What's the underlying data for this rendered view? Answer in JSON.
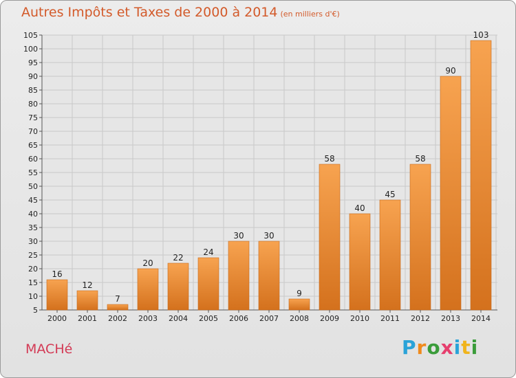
{
  "colors": {
    "title": "#d35a2a",
    "commune": "#d33a55",
    "bar_light": "#f7a350",
    "bar_dark": "#d4711d",
    "grid": "#c8c8c8",
    "axis_text": "#222222"
  },
  "header": {
    "title": "Autres Impôts et Taxes de 2000 à 2014",
    "unit": "(en milliers d'€)"
  },
  "commune_name": "MACHé",
  "logo": {
    "letters": [
      "P",
      "r",
      "o",
      "x",
      "i",
      "t",
      "i"
    ],
    "colors": [
      "#2aa3d8",
      "#f08a1c",
      "#3a9c3a",
      "#e63f6e",
      "#2aa3d8",
      "#f0b41c",
      "#3a9c3a"
    ]
  },
  "chart_data": {
    "type": "bar",
    "title": "Autres Impôts et Taxes de 2000 à 2014",
    "subtitle": "(en milliers d'€)",
    "categories": [
      "2000",
      "2001",
      "2002",
      "2003",
      "2004",
      "2005",
      "2006",
      "2007",
      "2008",
      "2009",
      "2010",
      "2011",
      "2012",
      "2013",
      "2014"
    ],
    "values": [
      16,
      12,
      7,
      20,
      22,
      24,
      30,
      30,
      9,
      58,
      40,
      45,
      58,
      90,
      103
    ],
    "data_labels": [
      "16",
      "12",
      "7",
      "20",
      "22",
      "24",
      "30",
      "30",
      "9",
      "58",
      "40",
      "45",
      "58",
      "90",
      "103"
    ],
    "ylim": [
      5,
      105
    ],
    "yticks": [
      5,
      10,
      15,
      20,
      25,
      30,
      35,
      40,
      45,
      50,
      55,
      60,
      65,
      70,
      75,
      80,
      85,
      90,
      95,
      100,
      105
    ],
    "xlabel": "",
    "ylabel": "",
    "grid": true
  }
}
